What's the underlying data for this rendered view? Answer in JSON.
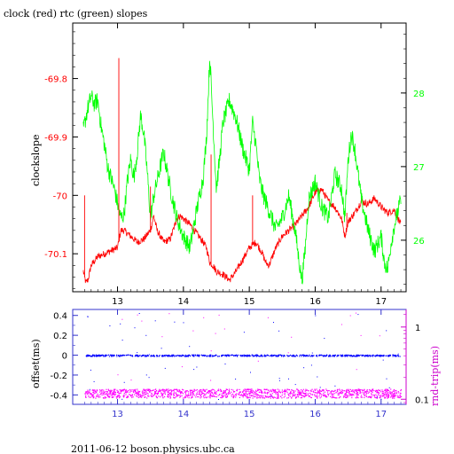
{
  "title": "clock (red) rtc (green) slopes",
  "footer": "2011-06-12 boson.physics.ubc.ca",
  "colors": {
    "red": "#ff0000",
    "green": "#00ff00",
    "blue": "#0000ff",
    "magenta": "#ff00ff",
    "axis_blue": "#3333cc",
    "axis_magenta": "#cc00cc"
  },
  "chart_data": [
    {
      "type": "line",
      "title": "clock (red) rtc (green) slopes",
      "ylabel": "clockslope",
      "xlim": [
        12.32,
        17.38
      ],
      "ylim": [
        -70.165,
        -69.705
      ],
      "xticks": [
        "13",
        "14",
        "15",
        "16",
        "17"
      ],
      "yticks_left": [
        "-69.8",
        "-69.9",
        "-70",
        "-70.1"
      ],
      "y2lim": [
        25.3,
        28.95
      ],
      "yticks_right": [
        "28",
        "27",
        "26"
      ],
      "grid": false,
      "series": [
        {
          "name": "clock",
          "axis": "left",
          "color": "#ff0000",
          "x": [
            12.48,
            12.5,
            12.52,
            12.55,
            12.6,
            12.7,
            12.8,
            12.9,
            13.0,
            13.05,
            13.1,
            13.2,
            13.3,
            13.4,
            13.5,
            13.55,
            13.6,
            13.7,
            13.8,
            13.9,
            13.95,
            14.0,
            14.1,
            14.2,
            14.3,
            14.35,
            14.4,
            14.45,
            14.5,
            14.6,
            14.7,
            14.8,
            14.9,
            15.0,
            15.1,
            15.15,
            15.2,
            15.25,
            15.3,
            15.4,
            15.5,
            15.6,
            15.7,
            15.8,
            15.9,
            16.0,
            16.1,
            16.2,
            16.3,
            16.4,
            16.45,
            16.5,
            16.6,
            16.7,
            16.8,
            16.9,
            17.0,
            17.1,
            17.2,
            17.3
          ],
          "y": [
            -70.13,
            -70.14,
            -70.15,
            -70.145,
            -70.12,
            -70.105,
            -70.1,
            -70.095,
            -70.09,
            -70.06,
            -70.06,
            -70.07,
            -70.08,
            -70.075,
            -70.06,
            -70.035,
            -70.06,
            -70.08,
            -70.075,
            -70.04,
            -70.035,
            -70.04,
            -70.05,
            -70.065,
            -70.08,
            -70.09,
            -70.115,
            -70.12,
            -70.13,
            -70.135,
            -70.145,
            -70.13,
            -70.11,
            -70.09,
            -70.08,
            -70.09,
            -70.1,
            -70.115,
            -70.12,
            -70.09,
            -70.07,
            -70.06,
            -70.05,
            -70.035,
            -70.02,
            -69.995,
            -69.99,
            -70.01,
            -70.02,
            -70.04,
            -70.07,
            -70.045,
            -70.03,
            -70.01,
            -70.015,
            -70.005,
            -70.02,
            -70.03,
            -70.025,
            -70.05
          ]
        },
        {
          "name": "rtc",
          "axis": "right",
          "color": "#00ff00",
          "x": [
            12.48,
            12.55,
            12.6,
            12.65,
            12.7,
            12.75,
            12.8,
            12.85,
            12.9,
            12.95,
            13.0,
            13.05,
            13.1,
            13.15,
            13.2,
            13.25,
            13.3,
            13.35,
            13.4,
            13.45,
            13.5,
            13.55,
            13.6,
            13.7,
            13.8,
            13.9,
            14.0,
            14.1,
            14.2,
            14.3,
            14.35,
            14.4,
            14.45,
            14.5,
            14.55,
            14.6,
            14.7,
            14.8,
            14.9,
            15.0,
            15.05,
            15.1,
            15.15,
            15.2,
            15.3,
            15.4,
            15.5,
            15.6,
            15.7,
            15.75,
            15.8,
            15.85,
            15.9,
            16.0,
            16.1,
            16.2,
            16.3,
            16.4,
            16.45,
            16.5,
            16.55,
            16.6,
            16.7,
            16.8,
            16.9,
            17.0,
            17.05,
            17.1,
            17.15,
            17.2,
            17.3
          ],
          "y": [
            27.5,
            27.8,
            27.95,
            27.85,
            27.9,
            27.55,
            27.3,
            27.0,
            26.85,
            26.7,
            26.5,
            26.3,
            26.35,
            26.8,
            27.1,
            26.85,
            27.2,
            27.7,
            27.45,
            26.95,
            26.3,
            26.6,
            26.8,
            27.2,
            26.7,
            26.3,
            26.05,
            25.9,
            26.4,
            26.85,
            27.4,
            28.5,
            27.6,
            26.7,
            27.1,
            27.6,
            27.9,
            27.65,
            27.25,
            26.95,
            27.6,
            27.3,
            26.85,
            26.65,
            26.4,
            26.15,
            26.3,
            26.6,
            26.1,
            25.75,
            25.45,
            25.9,
            26.55,
            26.8,
            26.45,
            26.3,
            26.9,
            26.7,
            26.3,
            27.1,
            27.45,
            27.25,
            26.55,
            26.15,
            25.85,
            26.05,
            25.7,
            25.6,
            25.95,
            26.2,
            26.55
          ]
        }
      ]
    },
    {
      "type": "scatter",
      "ylabel": "offset(ms)",
      "y2label": "rnd-trip(ms)",
      "xlim": [
        12.32,
        17.38
      ],
      "ylim": [
        -0.495,
        0.46
      ],
      "xticks": [
        "13",
        "14",
        "15",
        "16",
        "17"
      ],
      "yticks_left": [
        "0.4",
        "0.2",
        "0",
        "-0.2",
        "-0.4"
      ],
      "yticks_right": [
        "1",
        "0.1"
      ],
      "y2scale": "log",
      "y2lim": [
        0.085,
        1.75
      ],
      "grid": false,
      "series": [
        {
          "name": "offset",
          "axis": "left",
          "color": "#0000ff",
          "x": [
            12.5,
            17.3
          ],
          "y": [
            0.0,
            0.0
          ],
          "spread": 0.008
        },
        {
          "name": "rnd-trip",
          "axis": "right",
          "color": "#ff00ff",
          "x": [
            12.5,
            17.3
          ],
          "y": [
            0.12,
            0.12
          ],
          "spread_low": 0.105,
          "spread_high": 0.14
        }
      ]
    }
  ]
}
